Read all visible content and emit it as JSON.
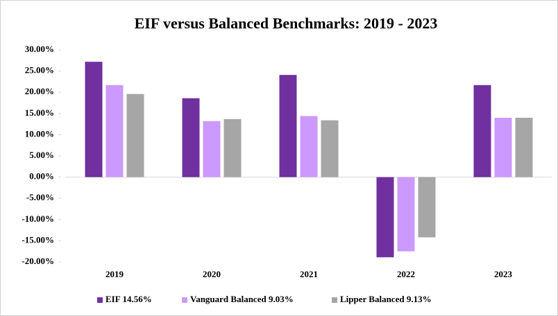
{
  "chart_data": {
    "type": "bar",
    "title": "EIF versus Balanced Benchmarks: 2019 - 2023",
    "categories": [
      "2019",
      "2020",
      "2021",
      "2022",
      "2023"
    ],
    "series": [
      {
        "name": "EIF 14.56%",
        "color": "#7030a0",
        "values": [
          27.2,
          18.6,
          24.1,
          -18.9,
          21.7
        ]
      },
      {
        "name": "Vanguard Balanced 9.03%",
        "color": "#cc99ff",
        "values": [
          21.7,
          13.2,
          14.4,
          -17.5,
          14.0
        ]
      },
      {
        "name": "Lipper Balanced 9.13%",
        "color": "#a6a6a6",
        "values": [
          19.6,
          13.7,
          13.4,
          -14.2,
          14.0
        ]
      }
    ],
    "ylim": [
      -20,
      30
    ],
    "yticks": [
      {
        "value": -20,
        "label": "-20.00%"
      },
      {
        "value": -15,
        "label": "-15.00%"
      },
      {
        "value": -10,
        "label": "-10.00%"
      },
      {
        "value": -5,
        "label": "-5.00%"
      },
      {
        "value": 0,
        "label": "0.00%"
      },
      {
        "value": 5,
        "label": "5.00%"
      },
      {
        "value": 10,
        "label": "10.00%"
      },
      {
        "value": 15,
        "label": "15.00%"
      },
      {
        "value": 20,
        "label": "20.00%"
      },
      {
        "value": 25,
        "label": "25.00%"
      },
      {
        "value": 30,
        "label": "30.00%"
      }
    ],
    "legend": "bottom"
  }
}
